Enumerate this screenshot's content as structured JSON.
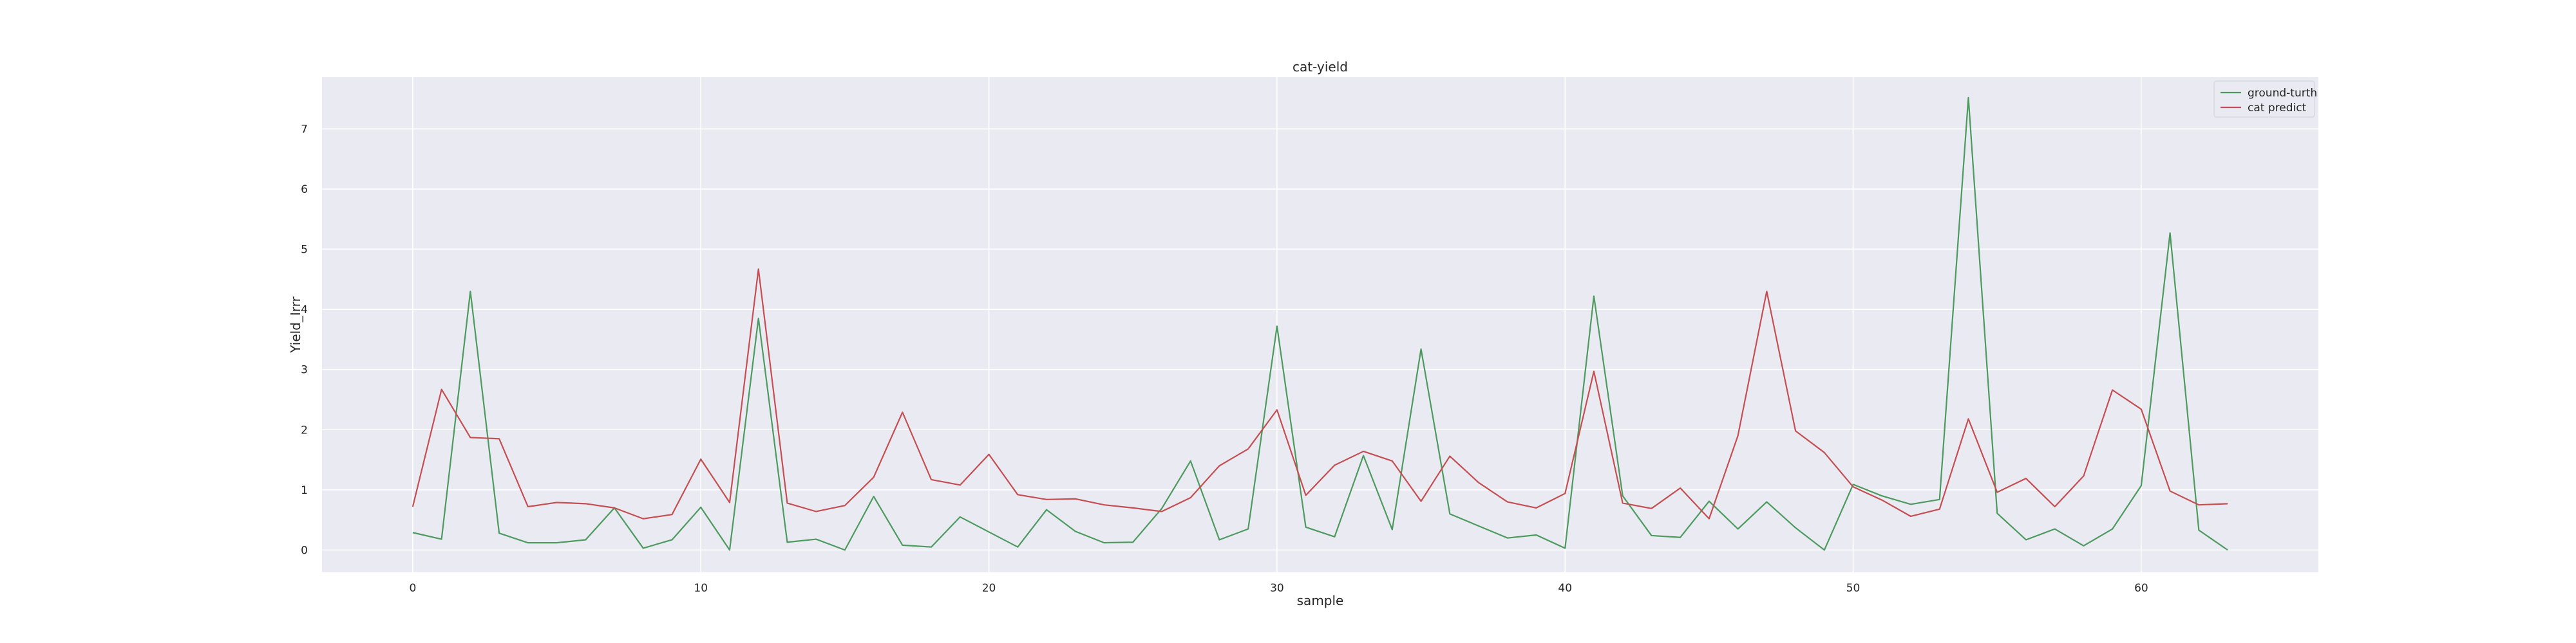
{
  "chart_data": {
    "type": "line",
    "title": "cat-yield",
    "xlabel": "sample",
    "ylabel": "Yield_Irrr",
    "xlim": [
      -3.15,
      66.15
    ],
    "ylim": [
      -0.37,
      7.86
    ],
    "xticks": [
      0,
      10,
      20,
      30,
      40,
      50,
      60
    ],
    "yticks": [
      0,
      1,
      2,
      3,
      4,
      5,
      6,
      7
    ],
    "grid": true,
    "legend_position": "top-right",
    "x": [
      0,
      1,
      2,
      3,
      4,
      5,
      6,
      7,
      8,
      9,
      10,
      11,
      12,
      13,
      14,
      15,
      16,
      17,
      18,
      19,
      20,
      21,
      22,
      23,
      24,
      25,
      26,
      27,
      28,
      29,
      30,
      31,
      32,
      33,
      34,
      35,
      36,
      37,
      38,
      39,
      40,
      41,
      42,
      43,
      44,
      45,
      46,
      47,
      48,
      49,
      50,
      51,
      52,
      53,
      54,
      55,
      56,
      57,
      58,
      59,
      60,
      61,
      62,
      63
    ],
    "series": [
      {
        "name": "ground-turth",
        "color": "#4c9a5e",
        "values": [
          0.29,
          0.18,
          4.3,
          0.28,
          0.12,
          0.12,
          0.17,
          0.7,
          0.03,
          0.17,
          0.71,
          0.0,
          3.85,
          0.13,
          0.18,
          0.0,
          0.89,
          0.08,
          0.05,
          0.55,
          0.3,
          0.05,
          0.67,
          0.31,
          0.12,
          0.13,
          0.69,
          1.48,
          0.17,
          0.35,
          3.72,
          0.38,
          0.22,
          1.57,
          0.34,
          3.34,
          0.6,
          0.4,
          0.2,
          0.25,
          0.03,
          4.22,
          0.9,
          0.24,
          0.21,
          0.81,
          0.35,
          0.8,
          0.37,
          0.0,
          1.09,
          0.9,
          0.76,
          0.84,
          7.52,
          0.61,
          0.17,
          0.35,
          0.07,
          0.35,
          1.07,
          5.27,
          0.33,
          0.0
        ]
      },
      {
        "name": "cat predict",
        "color": "#c44e52",
        "values": [
          0.72,
          2.67,
          1.87,
          1.85,
          0.72,
          0.79,
          0.77,
          0.7,
          0.52,
          0.59,
          1.51,
          0.79,
          4.67,
          0.78,
          0.64,
          0.74,
          1.21,
          2.29,
          1.17,
          1.08,
          1.59,
          0.92,
          0.84,
          0.85,
          0.75,
          0.7,
          0.64,
          0.87,
          1.4,
          1.68,
          2.33,
          0.91,
          1.41,
          1.64,
          1.48,
          0.81,
          1.56,
          1.12,
          0.8,
          0.7,
          0.94,
          2.97,
          0.78,
          0.69,
          1.03,
          0.52,
          1.9,
          4.3,
          1.98,
          1.62,
          1.05,
          0.83,
          0.56,
          0.68,
          2.18,
          0.96,
          1.19,
          0.72,
          1.23,
          2.66,
          2.34,
          0.98,
          0.75,
          0.77
        ]
      }
    ]
  },
  "colors": {
    "plot_background": "#eaeaf2",
    "grid": "#ffffff"
  }
}
